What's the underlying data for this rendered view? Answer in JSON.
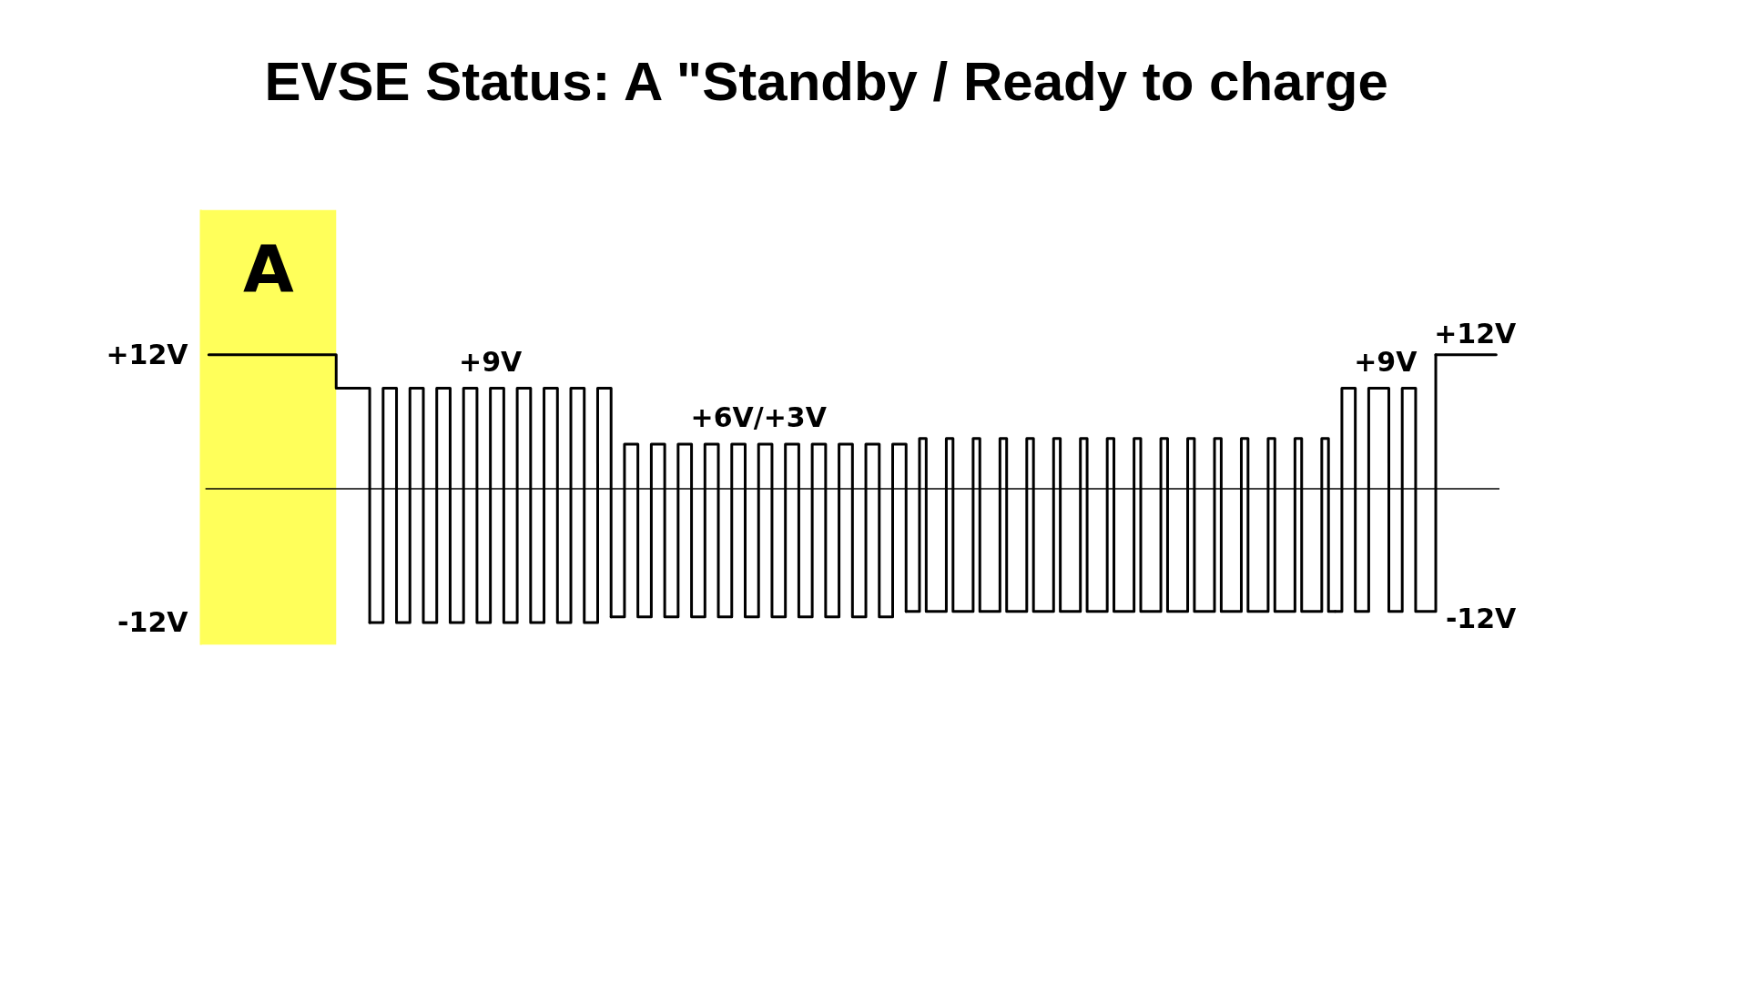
{
  "chart_data": {
    "type": "step",
    "title": "EVSE Status: A \"Standby / Ready to charge",
    "categories": [
      null,
      null,
      null,
      null,
      null,
      null,
      null,
      null,
      null,
      null,
      null,
      null,
      null,
      null,
      null,
      null,
      null,
      null,
      null,
      null,
      null,
      null,
      null,
      null,
      null,
      null,
      null,
      null,
      null,
      null,
      null,
      null,
      null,
      null,
      null,
      null,
      null,
      null,
      null,
      null,
      null,
      null,
      null,
      null,
      null,
      null,
      null,
      null,
      null,
      null,
      null,
      null,
      null,
      null,
      null,
      null,
      null,
      null,
      null,
      null,
      null,
      null,
      null,
      null,
      null,
      null,
      null,
      null,
      null,
      null,
      null,
      null,
      null,
      null,
      null,
      null,
      null,
      null,
      null,
      null,
      null,
      null,
      null,
      null,
      null,
      null,
      null,
      null,
      null,
      null,
      null,
      null,
      null,
      null,
      null,
      null,
      null,
      null,
      null,
      null,
      null,
      null,
      null,
      null,
      null,
      null,
      null,
      null,
      null,
      null,
      null,
      null,
      null,
      null,
      null,
      null,
      null,
      null,
      null,
      null,
      null,
      null,
      null,
      null,
      null,
      null,
      null,
      null,
      null,
      null,
      null,
      null,
      null,
      null,
      null,
      null,
      null,
      null,
      null,
      null,
      null,
      null,
      null,
      null,
      null,
      null,
      null,
      null,
      null,
      null,
      null,
      null,
      null,
      null,
      null,
      null,
      null,
      null,
      null,
      null,
      null,
      null,
      null,
      null,
      null,
      null,
      null,
      null,
      null,
      null,
      null,
      null,
      null,
      null,
      null,
      null,
      null,
      null,
      null,
      null,
      null,
      null,
      null,
      null,
      null,
      null,
      null,
      null,
      null,
      null,
      null,
      null,
      null
    ],
    "series": [
      {
        "color": "#000000",
        "values": [
          12,
          12,
          12,
          12,
          12,
          12,
          12,
          12,
          12,
          12,
          12,
          12,
          12,
          12,
          12,
          12,
          12,
          12,
          12,
          9,
          9,
          9,
          9,
          9,
          -12,
          null,
          null,
          null,
          null,
          null,
          null,
          null,
          null,
          null,
          null,
          null,
          null,
          null,
          null,
          null,
          null,
          null,
          null,
          null,
          null,
          null,
          null,
          null,
          null,
          null,
          null,
          null,
          null,
          null,
          null,
          null,
          null,
          null,
          null,
          null,
          null,
          null,
          null,
          null,
          null,
          null,
          null,
          null,
          null,
          null,
          null,
          null,
          null,
          null,
          null,
          null,
          null,
          null,
          null,
          null,
          null,
          null,
          null,
          null,
          null,
          null,
          null,
          null,
          null,
          null,
          null,
          null,
          null,
          null,
          null,
          null,
          null,
          null,
          null,
          null,
          null,
          null,
          null,
          null,
          -11,
          -11,
          4.5,
          -11,
          -11,
          -11,
          4.5,
          -11,
          -11,
          -11,
          4.5,
          -11,
          -11,
          -11,
          4.5,
          -11,
          -11,
          -11,
          4.5,
          -11,
          -11,
          -11,
          4.5,
          -11,
          -11,
          -11,
          4.5,
          -11,
          -11,
          -11,
          4.5,
          -11,
          -11,
          -11,
          4.5,
          -11,
          -11,
          -11,
          4.5,
          -11,
          -11,
          -11,
          4.5,
          -11,
          -11,
          -11,
          4.5,
          -11,
          -11,
          -11,
          4.5,
          -11,
          -11,
          -11,
          4.5,
          -11,
          -11,
          -11,
          4.5,
          -11,
          -11,
          -11,
          4.5,
          -11,
          -11,
          null,
          null,
          null,
          null,
          null,
          null,
          null,
          null,
          null,
          null,
          null,
          null,
          null,
          null,
          12,
          12,
          12,
          12,
          12,
          12,
          12,
          12,
          12,
          12
        ]
      },
      {
        "name": "+9V",
        "color": "#000000",
        "values": [
          null,
          null,
          null,
          null,
          null,
          null,
          null,
          null,
          null,
          null,
          null,
          null,
          null,
          null,
          null,
          null,
          null,
          null,
          null,
          null,
          null,
          null,
          null,
          null,
          -12,
          -12,
          9,
          9,
          -12,
          -12,
          9,
          9,
          -12,
          -12,
          9,
          9,
          -12,
          -12,
          9,
          9,
          -12,
          -12,
          9,
          9,
          -12,
          -12,
          9,
          9,
          -12,
          -12,
          9,
          9,
          -12,
          -12,
          9,
          9,
          -12,
          -12,
          9,
          9,
          -11.5,
          null,
          null,
          null,
          null,
          null,
          null,
          null,
          null,
          null,
          null,
          null,
          null,
          null,
          null,
          null,
          null,
          null,
          null,
          null,
          null,
          null,
          null,
          null,
          null,
          null,
          null,
          null,
          null,
          null,
          null,
          null,
          null,
          null,
          null,
          null,
          null,
          null,
          null,
          null,
          null,
          null,
          null,
          null,
          null,
          null,
          null,
          null,
          null,
          null,
          null,
          null,
          null,
          null,
          null,
          null,
          null,
          null,
          null,
          null,
          null,
          null,
          null,
          null,
          null,
          null,
          null,
          null,
          null,
          null,
          null,
          null,
          null,
          null,
          null,
          null,
          null,
          null,
          null,
          null,
          null,
          null,
          null,
          null,
          null,
          null,
          null,
          null,
          null,
          null,
          null,
          null,
          null,
          null,
          null,
          null,
          null,
          null,
          null,
          null,
          null,
          null,
          null,
          null,
          null,
          null,
          null,
          null,
          -11,
          9,
          9,
          -11,
          -11,
          9,
          9,
          9,
          -11,
          -11,
          9,
          9,
          -11,
          -11,
          -11,
          12,
          null,
          null,
          null,
          null,
          null,
          null,
          null,
          null,
          null
        ]
      },
      {
        "name": "+6V/+3V",
        "color": "#000000",
        "values": [
          null,
          null,
          null,
          null,
          null,
          null,
          null,
          null,
          null,
          null,
          null,
          null,
          null,
          null,
          null,
          null,
          null,
          null,
          null,
          null,
          null,
          null,
          null,
          null,
          null,
          null,
          null,
          null,
          null,
          null,
          null,
          null,
          null,
          null,
          null,
          null,
          null,
          null,
          null,
          null,
          null,
          null,
          null,
          null,
          null,
          null,
          null,
          null,
          null,
          null,
          null,
          null,
          null,
          null,
          null,
          null,
          null,
          null,
          null,
          null,
          -11.5,
          -11.5,
          4,
          4,
          -11.5,
          -11.5,
          4,
          4,
          -11.5,
          -11.5,
          4,
          4,
          -11.5,
          -11.5,
          4,
          4,
          -11.5,
          -11.5,
          4,
          4,
          -11.5,
          -11.5,
          4,
          4,
          -11.5,
          -11.5,
          4,
          4,
          -11.5,
          -11.5,
          4,
          4,
          -11.5,
          -11.5,
          4,
          4,
          -11.5,
          -11.5,
          4,
          4,
          -11.5,
          -11.5,
          4,
          4,
          -11,
          null,
          null,
          null,
          null,
          null,
          null,
          null,
          null,
          null,
          null,
          null,
          null,
          null,
          null,
          null,
          null,
          null,
          null,
          null,
          null,
          null,
          null,
          null,
          null,
          null,
          null,
          null,
          null,
          null,
          null,
          null,
          null,
          null,
          null,
          null,
          null,
          null,
          null,
          null,
          null,
          null,
          null,
          null,
          null,
          null,
          null,
          null,
          null,
          null,
          null,
          null,
          null,
          null,
          null,
          null,
          null,
          null,
          null,
          null,
          null,
          null,
          null,
          null,
          null,
          null,
          null,
          null,
          null,
          null,
          null,
          null,
          null,
          null,
          null,
          null,
          null,
          null,
          null,
          null,
          null,
          null,
          null,
          null,
          null,
          null,
          null,
          null,
          null
        ]
      }
    ],
    "ylim": [
      -14,
      25
    ],
    "yticks": [
      {
        "value": 12,
        "label": "+12V"
      },
      {
        "value": -12,
        "label": "-12V"
      }
    ],
    "tick_labels": "y",
    "ref_lines": [
      {
        "axis": "y",
        "value": 0,
        "color": "#000000"
      }
    ],
    "annotations": [
      "A",
      {
        "text": "+12V",
        "y": 12
      },
      "-12V"
    ]
  }
}
